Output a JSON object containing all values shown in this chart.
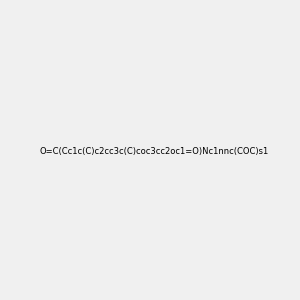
{
  "smiles": "O=C(Cc1c(C)c2cc3c(C)coc3cc2oc1=O)Nc1nnc(COC)s1",
  "img_size": [
    300,
    300
  ],
  "background": "#f0f0f0",
  "title": ""
}
